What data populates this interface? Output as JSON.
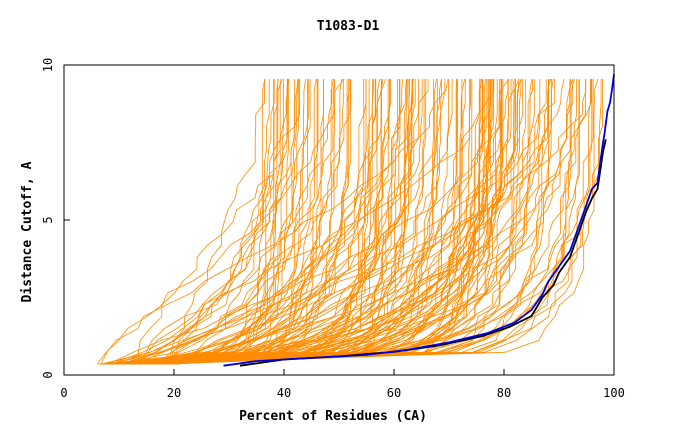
{
  "chart_data": {
    "type": "line",
    "title": "T1083-D1",
    "xlabel": "Percent of Residues (CA)",
    "ylabel": "Distance Cutoff, A",
    "xlim": [
      0,
      100
    ],
    "ylim": [
      0,
      10
    ],
    "x_ticks": [
      "0",
      "20",
      "40",
      "60",
      "80",
      "100"
    ],
    "y_ticks": [
      "0",
      "5",
      "10"
    ],
    "grid": false,
    "legend": "none",
    "background_series_color": "#ff8c00",
    "background_series_count": 160,
    "series": [
      {
        "color": "#0000dd",
        "x": [
          29,
          35,
          45,
          55,
          62,
          70,
          77,
          82,
          85,
          87,
          88,
          90,
          92,
          93,
          94,
          95,
          96,
          97,
          98,
          98.3,
          98.8,
          99.3,
          99.7,
          100
        ],
        "y": [
          0.3,
          0.45,
          0.55,
          0.65,
          0.8,
          1.05,
          1.35,
          1.7,
          2.1,
          2.6,
          3.0,
          3.5,
          4.0,
          4.5,
          5.0,
          5.5,
          6.0,
          6.2,
          7.5,
          7.8,
          8.5,
          8.8,
          9.3,
          9.7
        ]
      },
      {
        "color": "#000000",
        "x": [
          32,
          40,
          50,
          60,
          68,
          76,
          81,
          85,
          87,
          89,
          90,
          92,
          93,
          94,
          95,
          96,
          97,
          97.5,
          98,
          98.5
        ],
        "y": [
          0.3,
          0.5,
          0.6,
          0.75,
          0.95,
          1.25,
          1.55,
          1.9,
          2.5,
          2.9,
          3.3,
          3.8,
          4.3,
          4.8,
          5.3,
          5.7,
          6.0,
          6.6,
          7.2,
          7.6
        ]
      }
    ]
  }
}
